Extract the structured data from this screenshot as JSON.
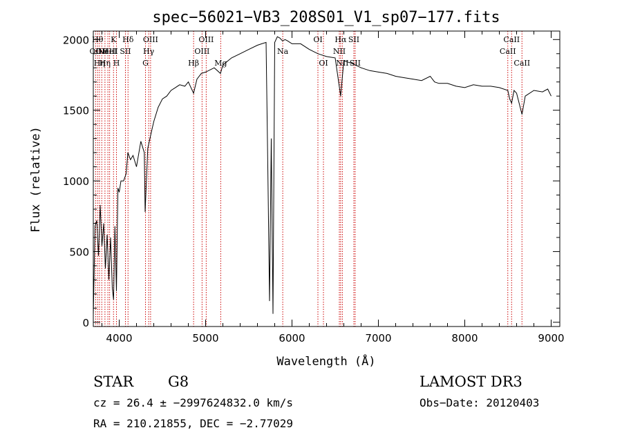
{
  "chart_data": {
    "type": "line",
    "title": "spec−56021−VB3_208S01_V1_sp07−177.fits",
    "xlabel": "Wavelength (Å)",
    "ylabel": "Flux (relative)",
    "xlim": [
      3700,
      9100
    ],
    "ylim": [
      -30,
      2060
    ],
    "x_ticks": [
      4000,
      5000,
      6000,
      7000,
      8000,
      9000
    ],
    "y_ticks": [
      0,
      500,
      1000,
      1500,
      2000
    ],
    "x_tick_labels": [
      "4000",
      "5000",
      "6000",
      "7000",
      "8000",
      "9000"
    ],
    "y_tick_labels": [
      "0",
      "500",
      "1000",
      "1500",
      "2000"
    ],
    "grid": false,
    "line_color": "#000000",
    "marker_color": "#cc0000",
    "series": [
      {
        "x": [
          3700,
          3720,
          3740,
          3760,
          3780,
          3800,
          3820,
          3840,
          3860,
          3880,
          3900,
          3920,
          3934,
          3950,
          3968,
          3985,
          4000,
          4020,
          4050,
          4080,
          4100,
          4130,
          4160,
          4200,
          4250,
          4290,
          4300,
          4330,
          4370,
          4400,
          4450,
          4500,
          4550,
          4600,
          4650,
          4700,
          4760,
          4800,
          4861,
          4900,
          4950,
          5000,
          5100,
          5172,
          5200,
          5300,
          5400,
          5500,
          5600,
          5650,
          5700,
          5720,
          5740,
          5760,
          5780,
          5800,
          5830,
          5860,
          5890,
          5920,
          5950,
          6000,
          6100,
          6200,
          6300,
          6400,
          6500,
          6563,
          6600,
          6700,
          6800,
          6900,
          7000,
          7100,
          7200,
          7300,
          7400,
          7500,
          7600,
          7650,
          7700,
          7800,
          7900,
          8000,
          8100,
          8200,
          8300,
          8400,
          8498,
          8520,
          8542,
          8570,
          8600,
          8662,
          8700,
          8800,
          8900,
          8960,
          9000
        ],
        "y": [
          50,
          680,
          720,
          470,
          830,
          540,
          700,
          380,
          620,
          300,
          600,
          240,
          160,
          680,
          220,
          950,
          920,
          1000,
          1000,
          1050,
          1200,
          1150,
          1180,
          1100,
          1280,
          1200,
          780,
          1230,
          1340,
          1420,
          1520,
          1580,
          1600,
          1640,
          1660,
          1680,
          1670,
          1700,
          1620,
          1720,
          1760,
          1770,
          1800,
          1760,
          1820,
          1870,
          1900,
          1930,
          1960,
          1970,
          1980,
          1100,
          150,
          1300,
          60,
          1980,
          2020,
          2010,
          1990,
          2000,
          1990,
          1970,
          1970,
          1930,
          1900,
          1880,
          1870,
          1600,
          1850,
          1830,
          1800,
          1780,
          1770,
          1760,
          1740,
          1730,
          1720,
          1710,
          1740,
          1700,
          1690,
          1690,
          1670,
          1660,
          1680,
          1670,
          1670,
          1660,
          1640,
          1580,
          1550,
          1640,
          1620,
          1470,
          1600,
          1640,
          1630,
          1650,
          1600
        ]
      }
    ],
    "line_markers": [
      {
        "x": 3727,
        "label": "OII",
        "row": 2
      },
      {
        "x": 3750,
        "label": "Hθ",
        "row": 1
      },
      {
        "x": 3771,
        "label": "Hη",
        "row": 3
      },
      {
        "x": 3798,
        "label": "OII",
        "row": 2
      },
      {
        "x": 3835,
        "label": "Hη",
        "row": 3
      },
      {
        "x": 3869,
        "label": "NeIII",
        "row": 2
      },
      {
        "x": 3889,
        "label": "HeI",
        "row": 2
      },
      {
        "x": 3934,
        "label": "K",
        "row": 1
      },
      {
        "x": 3968,
        "label": "H",
        "row": 3
      },
      {
        "x": 4072,
        "label": "SII",
        "row": 2
      },
      {
        "x": 4102,
        "label": "Hδ",
        "row": 1
      },
      {
        "x": 4304,
        "label": "G",
        "row": 3
      },
      {
        "x": 4341,
        "label": "Hγ",
        "row": 2
      },
      {
        "x": 4363,
        "label": "OIII",
        "row": 1
      },
      {
        "x": 4861,
        "label": "Hβ",
        "row": 3
      },
      {
        "x": 4959,
        "label": "OIII",
        "row": 2
      },
      {
        "x": 5007,
        "label": "OIII",
        "row": 1
      },
      {
        "x": 5175,
        "label": "Mg",
        "row": 3
      },
      {
        "x": 5893,
        "label": "Na",
        "row": 2
      },
      {
        "x": 6300,
        "label": "OI",
        "row": 1
      },
      {
        "x": 6364,
        "label": "OI",
        "row": 3
      },
      {
        "x": 6548,
        "label": "NII",
        "row": 2
      },
      {
        "x": 6563,
        "label": "Hα",
        "row": 1
      },
      {
        "x": 6583,
        "label": "NII",
        "row": 3
      },
      {
        "x": 6716,
        "label": "SII",
        "row": 1
      },
      {
        "x": 6731,
        "label": "SII",
        "row": 3
      },
      {
        "x": 8498,
        "label": "CaII",
        "row": 2
      },
      {
        "x": 8542,
        "label": "CaII",
        "row": 1
      },
      {
        "x": 8662,
        "label": "CaII",
        "row": 3
      }
    ]
  },
  "info": {
    "object_class": "STAR",
    "subclass": "G8",
    "survey": "LAMOST DR3",
    "redshift_line": "cz = 26.4 ± −2997624832.0 km/s",
    "obs_date_line": "Obs−Date: 20120403",
    "coords_line": "RA = 210.21855, DEC =  −2.77029"
  }
}
